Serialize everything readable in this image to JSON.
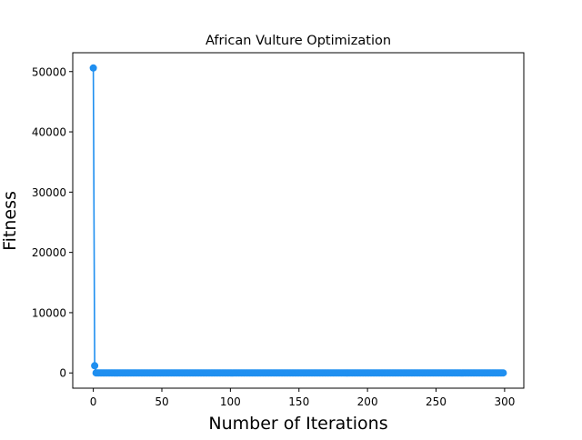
{
  "chart_data": {
    "type": "line",
    "title": "African Vulture Optimization",
    "xlabel": "Number of Iterations",
    "ylabel": "Fitness",
    "xlim": [
      -15,
      314
    ],
    "ylim": [
      -2530,
      53130
    ],
    "xticks": [
      0,
      50,
      100,
      150,
      200,
      250,
      300
    ],
    "yticks": [
      0,
      10000,
      20000,
      30000,
      40000,
      50000
    ],
    "grid": false,
    "legend": "none",
    "series": [
      {
        "color": "#1f8ff0",
        "marker": "circle",
        "x_start": 0,
        "x_end": 299,
        "values_head": [
          50600,
          1200
        ],
        "values_tail": 0
      }
    ]
  }
}
